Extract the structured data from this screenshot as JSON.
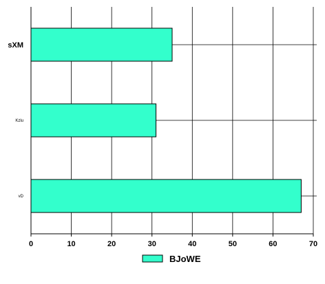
{
  "chart_data": {
    "type": "bar",
    "orientation": "horizontal",
    "categories": [
      "sXM",
      "Kzlu",
      "vD"
    ],
    "series": [
      {
        "name": "BJoWE",
        "values": [
          35,
          31,
          67
        ],
        "color": "#33ffcc"
      }
    ],
    "xlim": [
      0,
      70
    ],
    "xticks": [
      "0",
      "10",
      "20",
      "30",
      "40",
      "50",
      "60",
      "70"
    ],
    "grid": true,
    "legend": "bottom"
  }
}
